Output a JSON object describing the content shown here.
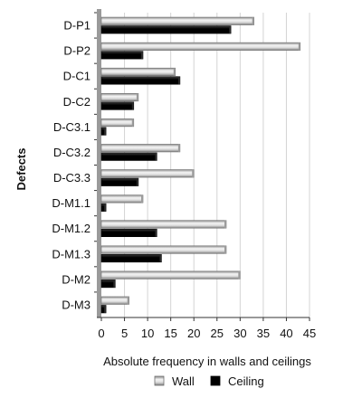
{
  "chart_data": {
    "type": "bar",
    "orientation": "horizontal",
    "categories": [
      "D-P1",
      "D-P2",
      "D-C1",
      "D-C2",
      "D-C3.1",
      "D-C3.2",
      "D-C3.3",
      "D-M1.1",
      "D-M1.2",
      "D-M1.3",
      "D-M2",
      "D-M3"
    ],
    "series": [
      {
        "name": "Wall",
        "color": "#c8c8c8",
        "values": [
          33,
          43,
          16,
          8,
          7,
          17,
          20,
          9,
          27,
          27,
          30,
          6
        ]
      },
      {
        "name": "Ceiling",
        "color": "#000000",
        "values": [
          28,
          9,
          17,
          7,
          1,
          12,
          8,
          1,
          12,
          13,
          3,
          1
        ]
      }
    ],
    "title": "",
    "xlabel": "Absolute frequency in walls and ceilings",
    "ylabel": "Defects",
    "xlim": [
      0,
      45
    ],
    "xticks": [
      0,
      5,
      10,
      15,
      20,
      25,
      30,
      35,
      40,
      45
    ],
    "grid": "vertical",
    "legend_position": "bottom-center"
  }
}
